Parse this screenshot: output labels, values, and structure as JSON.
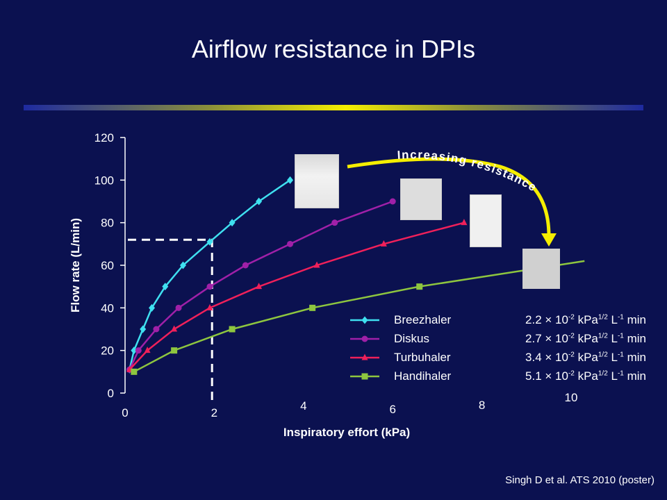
{
  "slide": {
    "title": "Airflow resistance in DPIs",
    "citation": "Singh D et al. ATS 2010 (poster)",
    "annotation": "Increasing resistance",
    "colors": {
      "background": "#0b1150",
      "arrow": "#f5ee00"
    }
  },
  "chart_data": {
    "type": "line",
    "xlabel": "Inspiratory effort (kPa)",
    "ylabel": "Flow rate (L/min)",
    "xlim": [
      0,
      10
    ],
    "ylim": [
      0,
      120
    ],
    "xticks": [
      "0",
      "2",
      "4",
      "6",
      "8",
      "10"
    ],
    "yticks": [
      "0",
      "20",
      "40",
      "60",
      "80",
      "100",
      "120"
    ],
    "grid": false,
    "legend_position": "bottom-right",
    "reference_point": {
      "x": 1.95,
      "y": 72
    },
    "series": [
      {
        "name": "Breezhaler",
        "resistance_value": "2.2",
        "color": "#3fe0f0",
        "marker": "diamond",
        "x": [
          0.1,
          0.2,
          0.4,
          0.6,
          0.9,
          1.3,
          1.9,
          2.4,
          3.0,
          3.7
        ],
        "y": [
          11,
          20,
          30,
          40,
          50,
          60,
          71,
          80,
          90,
          100
        ]
      },
      {
        "name": "Diskus",
        "resistance_value": "2.7",
        "color": "#a020a8",
        "marker": "circle",
        "x": [
          0.1,
          0.3,
          0.7,
          1.2,
          1.9,
          2.7,
          3.7,
          4.7,
          6.0
        ],
        "y": [
          11,
          20,
          30,
          40,
          50,
          60,
          70,
          80,
          90
        ]
      },
      {
        "name": "Turbuhaler",
        "resistance_value": "3.4",
        "color": "#f0205a",
        "marker": "triangle",
        "x": [
          0.1,
          0.5,
          1.1,
          1.9,
          3.0,
          4.3,
          5.8,
          7.6
        ],
        "y": [
          11,
          20,
          30,
          40,
          50,
          60,
          70,
          80
        ]
      },
      {
        "name": "Handihaler",
        "resistance_value": "5.1",
        "color": "#8ec63f",
        "marker": "square",
        "x": [
          0.2,
          1.1,
          2.4,
          4.2,
          6.6,
          10.3
        ],
        "y": [
          10,
          20,
          30,
          40,
          50,
          62
        ]
      }
    ],
    "legend": [
      {
        "name": "Breezhaler",
        "base": "2.2 × 10",
        "exp": "-2",
        "unit": " kPa",
        "uexp": "1/2",
        "unit2": " L",
        "lexp": "-1",
        "tail": " min"
      },
      {
        "name": "Diskus",
        "base": "2.7 × 10",
        "exp": "-2",
        "unit": " kPa",
        "uexp": "1/2",
        "unit2": " L",
        "lexp": "-1",
        "tail": " min"
      },
      {
        "name": "Turbuhaler",
        "base": "3.4 × 10",
        "exp": "-2",
        "unit": " kPa",
        "uexp": "1/2",
        "unit2": " L",
        "lexp": "-1",
        "tail": " min"
      },
      {
        "name": "Handihaler",
        "base": "5.1 × 10",
        "exp": "-2",
        "unit": " kPa",
        "uexp": "1/2",
        "unit2": " L",
        "lexp": "-1",
        "tail": " min"
      }
    ]
  }
}
